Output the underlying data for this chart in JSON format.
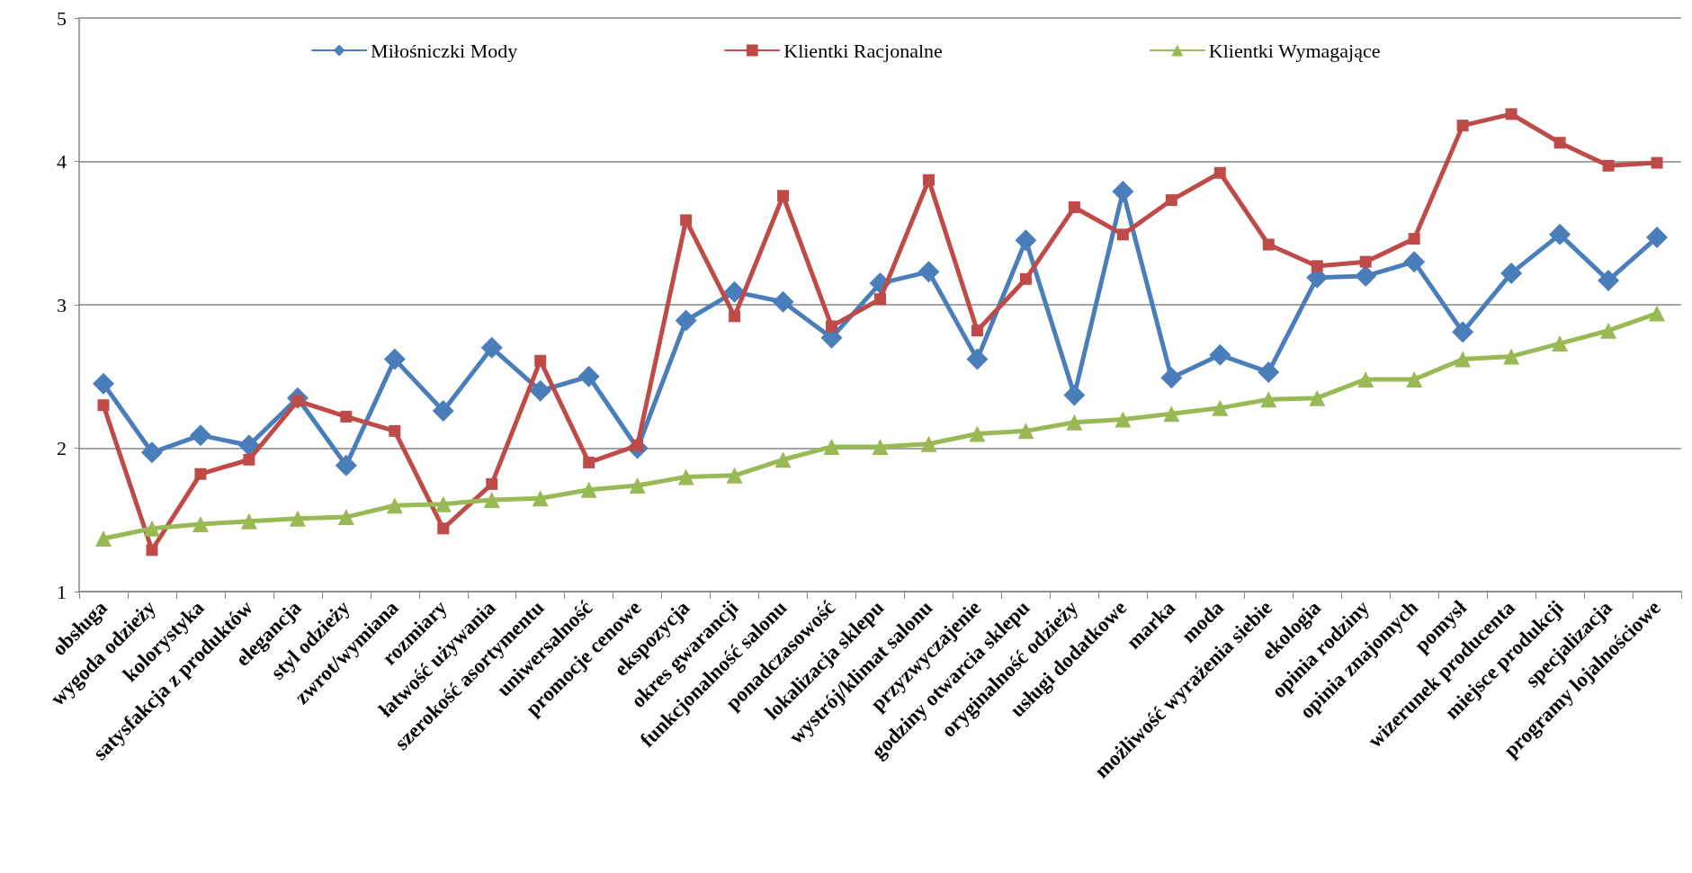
{
  "chart_data": {
    "type": "line",
    "categories": [
      "obsługa",
      "wygoda odzieży",
      "kolorystyka",
      "satysfakcja z produktów",
      "elegancja",
      "styl odzieży",
      "zwrot/wymiana",
      "rozmiary",
      "łatwość używania",
      "szerokość asortymentu",
      "uniwersalność",
      "promocje cenowe",
      "ekspozycja",
      "okres gwarancji",
      "funkcjonalność salonu",
      "ponadczasowość",
      "lokalizacja sklepu",
      "wystrój/klimat salonu",
      "przyzwyczajenie",
      "godziny otwarcia sklepu",
      "oryginalność odzieży",
      "usługi dodatkowe",
      "marka",
      "moda",
      "możliwość wyrażenia siebie",
      "ekologia",
      "opinia rodziny",
      "opinia znajomych",
      "pomysł",
      "wizerunek producenta",
      "miejsce produkcji",
      "specjalizacja",
      "programy lojalnościowe"
    ],
    "series": [
      {
        "name": "Miłośniczki Mody",
        "color": "#4a7ebb",
        "marker": "diamond",
        "values": [
          2.45,
          1.97,
          2.09,
          2.02,
          2.35,
          1.88,
          2.62,
          2.26,
          2.7,
          2.4,
          2.5,
          2.0,
          2.89,
          3.09,
          3.02,
          2.77,
          3.15,
          3.23,
          2.62,
          3.45,
          2.37,
          3.79,
          2.49,
          2.65,
          2.53,
          3.19,
          3.2,
          3.3,
          2.81,
          3.22,
          3.49,
          3.17,
          3.47
        ]
      },
      {
        "name": "Klientki Racjonalne",
        "color": "#be4b48",
        "marker": "square",
        "values": [
          2.3,
          1.29,
          1.82,
          1.92,
          2.33,
          2.22,
          2.12,
          1.44,
          1.75,
          2.61,
          1.9,
          2.02,
          3.59,
          2.92,
          3.76,
          2.85,
          3.04,
          3.87,
          2.82,
          3.18,
          3.68,
          3.49,
          3.73,
          3.92,
          3.42,
          3.27,
          3.3,
          3.46,
          4.25,
          4.33,
          4.13,
          3.97,
          3.99
        ]
      },
      {
        "name": "Klientki Wymagające",
        "color": "#98b954",
        "marker": "triangle",
        "values": [
          1.37,
          1.44,
          1.47,
          1.49,
          1.51,
          1.52,
          1.6,
          1.61,
          1.64,
          1.65,
          1.71,
          1.74,
          1.8,
          1.81,
          1.92,
          2.01,
          2.01,
          2.03,
          2.1,
          2.12,
          2.18,
          2.2,
          2.24,
          2.28,
          2.34,
          2.35,
          2.48,
          2.48,
          2.62,
          2.64,
          2.73,
          2.82,
          2.94
        ]
      }
    ],
    "ylim": [
      1,
      5
    ],
    "yticks": [
      1,
      2,
      3,
      4,
      5
    ],
    "grid": "y",
    "legend": "top",
    "line_style": "solid"
  }
}
